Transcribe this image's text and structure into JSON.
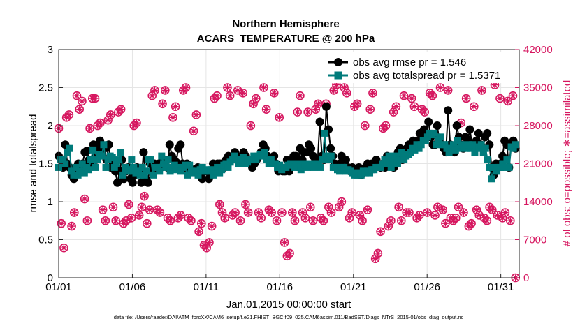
{
  "chart_data": {
    "type": "line",
    "title": [
      "Northern Hemisphere",
      "ACARS_TEMPERATURE @ 200 hPa"
    ],
    "xlabel": "Jan.01,2015 00:00:00 start",
    "ylabel": "rmse and totalspread",
    "ylabel_right": "# of obs: o=possible; ∗=assimilated",
    "footnote": "data file: /Users/raeder/DAI/ATM_forcXX/CAM6_setup/f.e21.FHIST_BGC.f09_025.CAM6assim.011/BadSST/Diags_NTrS_2015-01/obs_diag_output.nc",
    "x_tick_labels": [
      "01/01",
      "01/06",
      "01/11",
      "01/16",
      "01/21",
      "01/26",
      "01/31"
    ],
    "x_tick_days": [
      0,
      5,
      10,
      15,
      20,
      25,
      30
    ],
    "xlim": [
      0,
      31.25
    ],
    "ylim": [
      0,
      3
    ],
    "y_ticks": [
      "0",
      "0.5",
      "1",
      "1.5",
      "2",
      "2.5",
      "3"
    ],
    "ylim_right": [
      0,
      42000
    ],
    "y_ticks_right": [
      "0",
      "7000",
      "14000",
      "21000",
      "28000",
      "35000",
      "42000"
    ],
    "legend": [
      {
        "label": "obs avg rmse pr = 1.546",
        "color": "#000000",
        "marker": "circle"
      },
      {
        "label": "obs avg totalspread pr = 1.5371",
        "color": "#007b7b",
        "marker": "square"
      }
    ],
    "series": [
      {
        "name": "obs avg rmse",
        "color": "#000000",
        "marker": "circle",
        "values": [
          1.6,
          1.55,
          1.45,
          1.75,
          1.5,
          1.45,
          1.35,
          1.3,
          1.42,
          1.5,
          1.45,
          1.5,
          1.65,
          1.67,
          1.55,
          1.5,
          1.75,
          1.55,
          1.7,
          1.8,
          1.7,
          1.7,
          1.55,
          1.75,
          1.45,
          1.5,
          1.4,
          1.25,
          1.4,
          1.55,
          1.3,
          1.4,
          1.45,
          1.3,
          1.25,
          1.35,
          1.45,
          1.4,
          1.25,
          1.65,
          1.3,
          1.25,
          1.5,
          1.4,
          1.5,
          1.45,
          1.5,
          1.45,
          1.55,
          1.55,
          1.45,
          1.75,
          1.6,
          1.55,
          1.52,
          1.7,
          1.75,
          1.5,
          1.45,
          1.5,
          1.45,
          1.4,
          1.42,
          1.4,
          1.45,
          1.35,
          1.3,
          1.4,
          1.4,
          1.3,
          1.35,
          1.5,
          1.45,
          1.5,
          1.5,
          1.5,
          1.45,
          1.55,
          1.6,
          1.55,
          1.6,
          1.65,
          1.6,
          1.55,
          1.6,
          1.65,
          1.6,
          1.55,
          1.5,
          1.45,
          1.5,
          1.55,
          1.6,
          1.65,
          1.75,
          1.7,
          1.6,
          1.55,
          1.55,
          1.6,
          1.5,
          1.4,
          1.45,
          1.4,
          1.4,
          1.55,
          1.4,
          1.5,
          1.6,
          1.6,
          1.55,
          1.7,
          1.55,
          1.65,
          1.65,
          1.75,
          1.7,
          1.6,
          1.55,
          1.5,
          2.05,
          1.6,
          1.55,
          2.25,
          1.95,
          1.7,
          1.6,
          1.5,
          1.45,
          1.5,
          1.6,
          1.55,
          1.55,
          1.45,
          1.4,
          1.45,
          1.4,
          1.4,
          1.45,
          1.35,
          1.4,
          1.45,
          1.5,
          1.45,
          1.5,
          1.45,
          1.55,
          1.5,
          1.45,
          1.5,
          1.45,
          1.6,
          1.5,
          1.55,
          1.45,
          1.6,
          1.65,
          1.7,
          1.55,
          1.65,
          1.7,
          1.75,
          1.7,
          1.8,
          1.75,
          1.8,
          1.9,
          1.85,
          1.95,
          1.9,
          2.05,
          1.85,
          1.75,
          1.75,
          2.0,
          1.8,
          1.75,
          1.7,
          1.65,
          2.2,
          1.75,
          1.7,
          1.65,
          2.0,
          1.85,
          1.75,
          1.7,
          1.85,
          1.8,
          1.95,
          1.75,
          1.7,
          1.8,
          1.9,
          1.75,
          1.7,
          1.85,
          1.9,
          1.75,
          1.45,
          1.35,
          1.5,
          1.45,
          1.5,
          1.6,
          1.8,
          1.75,
          1.45,
          1.75,
          1.8,
          1.7
        ]
      },
      {
        "name": "obs avg totalspread",
        "color": "#007b7b",
        "marker": "square",
        "values": [
          1.45,
          1.55,
          1.55,
          1.5,
          1.65,
          1.7,
          1.4,
          1.35,
          1.45,
          1.35,
          1.4,
          1.5,
          1.38,
          1.45,
          1.42,
          1.55,
          1.68,
          1.45,
          1.55,
          1.62,
          1.6,
          1.75,
          1.45,
          1.55,
          1.6,
          1.58,
          1.45,
          1.5,
          1.55,
          1.65,
          1.35,
          1.45,
          1.42,
          1.4,
          1.55,
          1.45,
          1.38,
          1.4,
          1.35,
          1.45,
          1.35,
          1.4,
          1.55,
          1.55,
          1.35,
          1.45,
          1.45,
          1.4,
          1.6,
          1.5,
          1.45,
          1.55,
          1.4,
          1.45,
          1.48,
          1.42,
          1.45,
          1.4,
          1.45,
          1.48,
          1.35,
          1.48,
          1.4,
          1.38,
          1.4,
          1.35,
          1.42,
          1.45,
          1.4,
          1.42,
          1.4,
          1.42,
          1.35,
          1.4,
          1.45,
          1.38,
          1.42,
          1.48,
          1.5,
          1.45,
          1.52,
          1.55,
          1.6,
          1.55,
          1.5,
          1.55,
          1.58,
          1.5,
          1.52,
          1.55,
          1.55,
          1.6,
          1.55,
          1.6,
          1.62,
          1.6,
          1.65,
          1.55,
          1.5,
          1.55,
          1.5,
          1.5,
          1.45,
          1.48,
          1.42,
          1.45,
          1.45,
          1.48,
          1.5,
          1.5,
          1.45,
          1.5,
          1.45,
          1.42,
          1.5,
          1.48,
          1.45,
          1.5,
          1.5,
          1.45,
          1.5,
          1.5,
          1.45,
          1.55,
          1.9,
          1.6,
          1.55,
          1.6,
          1.45,
          1.45,
          1.42,
          1.4,
          1.45,
          1.45,
          1.4,
          1.42,
          1.4,
          1.38,
          1.35,
          1.35,
          1.38,
          1.35,
          1.4,
          1.38,
          1.4,
          1.38,
          1.42,
          1.42,
          1.45,
          1.45,
          1.45,
          1.5,
          1.55,
          1.5,
          1.6,
          1.45,
          1.52,
          1.6,
          1.5,
          1.55,
          1.65,
          1.55,
          1.6,
          1.62,
          1.65,
          1.7,
          1.68,
          1.75,
          1.7,
          1.75,
          1.8,
          1.8,
          1.85,
          1.9,
          1.88,
          1.9,
          1.75,
          1.8,
          1.85,
          1.75,
          1.75,
          1.7,
          1.65,
          1.7,
          1.75,
          1.68,
          1.8,
          1.7,
          1.75,
          1.72,
          1.7,
          1.75,
          1.7,
          1.75,
          1.65,
          1.72,
          1.7,
          1.75,
          1.65,
          1.7,
          1.55,
          1.45,
          1.3,
          1.45,
          1.4,
          1.45,
          1.45,
          1.5,
          1.45,
          1.55,
          1.45,
          1.72,
          1.7,
          1.75
        ]
      },
      {
        "name": "# of obs possible",
        "axis": "right",
        "color": "#d6165f",
        "marker": "circle-open",
        "values": [
          27500,
          10000,
          5500,
          29500,
          30000,
          9500,
          12000,
          33500,
          31000,
          32500,
          14500,
          10500,
          27500,
          33000,
          33000,
          28000,
          28500,
          12500,
          10500,
          29000,
          30000,
          13000,
          10500,
          30500,
          31000,
          10000,
          10500,
          13500,
          11000,
          28000,
          28500,
          11500,
          13000,
          15000,
          10000,
          12500,
          33500,
          34500,
          12500,
          12000,
          32000,
          34500,
          11000,
          10500,
          29500,
          31500,
          11000,
          11500,
          34500,
          35000,
          11000,
          10500,
          27000,
          30000,
          8500,
          10000,
          6000,
          5500,
          6500,
          9500,
          33000,
          33500,
          13500,
          12000,
          11000,
          35000,
          33500,
          11500,
          12000,
          34500,
          10500,
          34000,
          13500,
          12000,
          28000,
          32000,
          33000,
          12000,
          11000,
          35000,
          31000,
          12500,
          12000,
          34000,
          10500,
          29500,
          12000,
          6500,
          4000,
          4500,
          12000,
          10500,
          30500,
          33500,
          12000,
          11000,
          30500,
          13000,
          10500,
          31000,
          32000,
          11000,
          10500,
          32000,
          13000,
          12000,
          34500,
          35500,
          13000,
          14000,
          35000,
          34000,
          11000,
          12000,
          31500,
          32000,
          11500,
          10500,
          28000,
          12500,
          31000,
          34000,
          3500,
          4500,
          8500,
          27500,
          28000,
          9500,
          10500,
          30500,
          31500,
          13000,
          10500,
          33500,
          12000,
          12000,
          33000,
          31500,
          11000,
          11500,
          31000,
          30500,
          12000,
          34000,
          33500,
          11500,
          13000,
          35000,
          12500,
          10000,
          34500,
          11000,
          10500,
          11000,
          13000,
          28500,
          12000,
          33000,
          9500,
          10000,
          31500,
          12500,
          11500,
          34500,
          11000,
          10500,
          13000,
          12500,
          35500,
          11500,
          33000,
          11000,
          12000,
          32500,
          10500,
          33500,
          0
        ]
      },
      {
        "name": "# of obs assimilated",
        "axis": "right",
        "color": "#d6165f",
        "marker": "asterisk",
        "values": [
          27500,
          10000,
          5500,
          29500,
          30000,
          9500,
          12000,
          33500,
          31000,
          32500,
          14500,
          10500,
          27500,
          33000,
          33000,
          28000,
          28500,
          12500,
          10500,
          29000,
          30000,
          13000,
          10500,
          30500,
          31000,
          10000,
          10500,
          13500,
          11000,
          28000,
          28500,
          11500,
          13000,
          15000,
          10000,
          12500,
          33500,
          34500,
          12500,
          12000,
          32000,
          34500,
          11000,
          10500,
          29500,
          31500,
          11000,
          11500,
          34500,
          35000,
          11000,
          10500,
          27000,
          30000,
          8500,
          10000,
          6000,
          5500,
          6500,
          9500,
          33000,
          33500,
          13500,
          12000,
          11000,
          35000,
          33500,
          11500,
          12000,
          34500,
          10500,
          34000,
          13500,
          12000,
          28000,
          32000,
          33000,
          12000,
          11000,
          35000,
          31000,
          12500,
          12000,
          34000,
          10500,
          29500,
          12000,
          6500,
          4000,
          4500,
          12000,
          10500,
          30500,
          33500,
          12000,
          11000,
          30500,
          13000,
          10500,
          31000,
          32000,
          11000,
          10500,
          32000,
          13000,
          12000,
          34500,
          35500,
          13000,
          14000,
          35000,
          34000,
          11000,
          12000,
          31500,
          32000,
          11500,
          10500,
          28000,
          12500,
          31000,
          34000,
          3500,
          4500,
          8500,
          27500,
          28000,
          9500,
          10500,
          30500,
          31500,
          13000,
          10500,
          33500,
          12000,
          12000,
          33000,
          31500,
          11000,
          11500,
          31000,
          30500,
          12000,
          34000,
          33500,
          11500,
          13000,
          35000,
          12500,
          10000,
          34500,
          11000,
          10500,
          11000,
          13000,
          28500,
          12000,
          33000,
          9500,
          10000,
          31500,
          12500,
          11500,
          34500,
          11000,
          10500,
          13000,
          12500,
          35500,
          11500,
          33000,
          11000,
          12000,
          32500,
          10500,
          33500,
          0
        ]
      }
    ]
  }
}
